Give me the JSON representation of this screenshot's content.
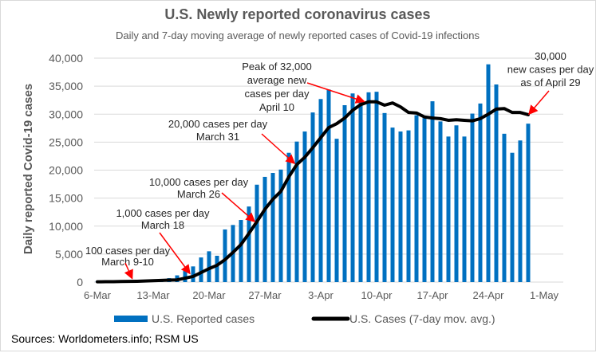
{
  "chart_data": {
    "type": "bar",
    "title": "U.S. Newly reported coronavirus cases",
    "subtitle": "Daily and 7-day moving average of newly reported cases of Covid-19 infections",
    "xlabel": "",
    "ylabel": "Daily reported Covid-19 cases",
    "ylim": [
      0,
      40000
    ],
    "yticks": [
      "0",
      "5,000",
      "10,000",
      "15,000",
      "20,000",
      "25,000",
      "30,000",
      "35,000",
      "40,000"
    ],
    "xticks": [
      "6-Mar",
      "13-Mar",
      "20-Mar",
      "27-Mar",
      "3-Apr",
      "10-Apr",
      "17-Apr",
      "24-Apr",
      "1-May"
    ],
    "x_start": "6-Mar",
    "x_end": "29-Apr",
    "grid": true,
    "legend_position": "bottom",
    "series": [
      {
        "name": "U.S. Reported cases",
        "type": "bar",
        "color": "#0070C0",
        "values": [
          70,
          120,
          100,
          150,
          250,
          350,
          400,
          500,
          500,
          700,
          1200,
          2000,
          2800,
          4400,
          5500,
          4700,
          9400,
          10200,
          11100,
          13500,
          17400,
          18800,
          19500,
          20100,
          23100,
          25100,
          26900,
          30300,
          32700,
          34400,
          25600,
          31600,
          33700,
          32300,
          33900,
          34000,
          30200,
          27600,
          26900,
          27100,
          29800,
          29300,
          32300,
          28700,
          26000,
          28000,
          26000,
          30100,
          31900,
          38900,
          35300,
          26500,
          23100,
          25300,
          28300
        ]
      },
      {
        "name": "U.S. Cases (7-day mov. avg.)",
        "type": "line",
        "color": "#000000",
        "values": [
          50,
          70,
          80,
          100,
          120,
          150,
          200,
          250,
          300,
          350,
          400,
          700,
          1000,
          1700,
          2400,
          3000,
          4000,
          5300,
          6700,
          8700,
          10800,
          13000,
          14800,
          16200,
          18800,
          21000,
          22300,
          24000,
          25800,
          27600,
          28300,
          29300,
          30700,
          31700,
          32200,
          32200,
          31600,
          32000,
          31300,
          30300,
          30200,
          29500,
          29300,
          29200,
          28900,
          29000,
          28900,
          28800,
          29200,
          30000,
          30900,
          31000,
          30300,
          30300,
          29900
        ]
      }
    ],
    "annotations": [
      {
        "lines": [
          "Peak of 32,000",
          "average new",
          "cases per day",
          "April 10"
        ]
      },
      {
        "lines": [
          "30,000",
          "new cases per day",
          "as of April 29"
        ]
      },
      {
        "lines": [
          "20,000 cases per day",
          "March 31"
        ]
      },
      {
        "lines": [
          "10,000 cases per day",
          "March 26"
        ]
      },
      {
        "lines": [
          "1,000 cases per day",
          "March 18"
        ]
      },
      {
        "lines": [
          "100 cases per day",
          "March 9-10"
        ]
      }
    ],
    "annotation_color": "#FF0000",
    "source": "Sources: Worldometers.info; RSM US"
  }
}
